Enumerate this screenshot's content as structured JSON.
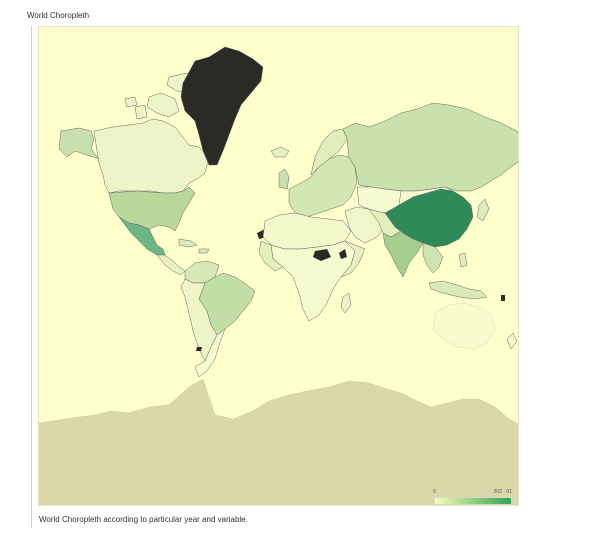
{
  "header": {
    "title": "World Choropleth"
  },
  "footer": {
    "caption": "World Choropleth according to particular year and variable."
  },
  "map": {
    "ocean_color": "#ffffcc",
    "border_color": "#666666",
    "legend": {
      "min_label": "0",
      "max_label": "202 · 01",
      "color_low": "#f7fcb9",
      "color_high": "#31a354"
    },
    "regions": [
      {
        "name": "Greenland",
        "color": "#2b2b26"
      },
      {
        "name": "Canada",
        "color": "#edf4c7"
      },
      {
        "name": "Alaska",
        "color": "#c8e0ad"
      },
      {
        "name": "United States",
        "color": "#b9d89b"
      },
      {
        "name": "Mexico",
        "color": "#6cb585"
      },
      {
        "name": "Brazil",
        "color": "#c3dea4"
      },
      {
        "name": "Russia",
        "color": "#c9e1ad"
      },
      {
        "name": "China",
        "color": "#2f8a5a"
      },
      {
        "name": "India",
        "color": "#a6cf8f"
      },
      {
        "name": "Kazakhstan",
        "color": "#f7fbd0"
      },
      {
        "name": "Australia",
        "color": "#f9fbcf"
      },
      {
        "name": "Antarctica",
        "color": "#d9d8a8"
      },
      {
        "name": "South Sudan",
        "color": "#2b2b26"
      },
      {
        "name": "Western Sahara",
        "color": "#2b2b26"
      }
    ]
  }
}
